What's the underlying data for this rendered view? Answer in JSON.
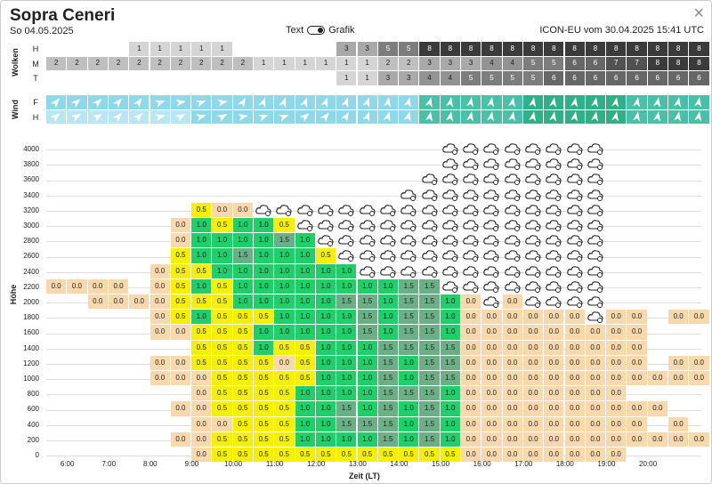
{
  "header": {
    "title": "Sopra Ceneri",
    "date": "So 04.05.2025",
    "toggle_left": "Text",
    "toggle_right": "Grafik",
    "model": "ICON-EU vom 30.04.2025 15:41 UTC",
    "close": "×"
  },
  "clouds": {
    "label": "Wolken",
    "rows": [
      {
        "name": "H",
        "values": [
          "",
          "",
          "",
          "",
          "1",
          "1",
          "1",
          "1",
          "1",
          "",
          "",
          "",
          "",
          "",
          "3",
          "3",
          "5",
          "5",
          "8",
          "8",
          "8",
          "8",
          "8",
          "8",
          "8",
          "8",
          "8",
          "8",
          "8",
          "8",
          "8",
          "8"
        ]
      },
      {
        "name": "M",
        "values": [
          "2",
          "2",
          "2",
          "2",
          "2",
          "2",
          "2",
          "2",
          "2",
          "2",
          "1",
          "1",
          "1",
          "1",
          "1",
          "1",
          "2",
          "2",
          "3",
          "3",
          "3",
          "4",
          "4",
          "5",
          "5",
          "6",
          "6",
          "7",
          "7",
          "8",
          "8",
          "8"
        ]
      },
      {
        "name": "T",
        "values": [
          "",
          "",
          "",
          "",
          "",
          "",
          "",
          "",
          "",
          "",
          "",
          "",
          "",
          "",
          "1",
          "1",
          "3",
          "3",
          "4",
          "4",
          "5",
          "5",
          "5",
          "5",
          "6",
          "6",
          "6",
          "6",
          "6",
          "6",
          "6",
          "6"
        ]
      }
    ]
  },
  "wind": {
    "label": "Wind",
    "rows": [
      {
        "name": "F",
        "dirs": [
          40,
          50,
          45,
          40,
          35,
          70,
          80,
          70,
          80,
          30,
          20,
          20,
          20,
          20,
          20,
          20,
          10,
          15,
          15,
          10,
          10,
          10,
          10,
          10,
          10,
          10,
          10,
          10,
          10,
          10,
          10,
          10
        ]
      },
      {
        "name": "H",
        "dirs": [
          50,
          60,
          60,
          40,
          45,
          75,
          60,
          75,
          60,
          80,
          70,
          70,
          50,
          40,
          30,
          20,
          15,
          15,
          10,
          10,
          10,
          10,
          10,
          10,
          10,
          10,
          10,
          10,
          10,
          10,
          10,
          10
        ]
      }
    ]
  },
  "chart": {
    "y_title": "Höhe",
    "x_title": "Zeit (LT)",
    "y_labels": [
      "0",
      "200",
      "400",
      "600",
      "800",
      "1000",
      "1200",
      "1400",
      "1600",
      "1800",
      "2000",
      "2200",
      "2400",
      "2600",
      "2800",
      "3000",
      "3200",
      "3400",
      "3600",
      "3800",
      "4000"
    ],
    "x_labels": [
      "6:00",
      "7:00",
      "8:00",
      "9:00",
      "10:00",
      "11:00",
      "12:00",
      "13:00",
      "14:00",
      "15:00",
      "16:00",
      "17:00",
      "18:00",
      "19:00",
      "20:00"
    ],
    "rows": [
      {
        "h": "4000",
        "c": [
          "",
          "",
          "",
          "",
          "",
          "",
          "",
          "",
          "",
          "",
          "",
          "",
          "",
          "",
          "",
          "",
          "",
          "",
          "",
          "C",
          "C",
          "C",
          "C",
          "C",
          "C",
          "C",
          "C",
          "",
          "",
          "",
          "",
          ""
        ]
      },
      {
        "h": "3800",
        "c": [
          "",
          "",
          "",
          "",
          "",
          "",
          "",
          "",
          "",
          "",
          "",
          "",
          "",
          "",
          "",
          "",
          "",
          "",
          "",
          "C",
          "C",
          "C",
          "C",
          "C",
          "C",
          "C",
          "C",
          "",
          "",
          "",
          "",
          ""
        ]
      },
      {
        "h": "3600",
        "c": [
          "",
          "",
          "",
          "",
          "",
          "",
          "",
          "",
          "",
          "",
          "",
          "",
          "",
          "",
          "",
          "",
          "",
          "",
          "C",
          "C",
          "C",
          "C",
          "C",
          "C",
          "C",
          "C",
          "C",
          "",
          "",
          "",
          "",
          ""
        ]
      },
      {
        "h": "3400",
        "c": [
          "",
          "",
          "",
          "",
          "",
          "",
          "",
          "",
          "",
          "",
          "",
          "",
          "",
          "",
          "",
          "",
          "",
          "C",
          "C",
          "C",
          "C",
          "C",
          "C",
          "C",
          "C",
          "C",
          "C",
          "",
          "",
          "",
          "",
          ""
        ]
      },
      {
        "h": "3200",
        "c": [
          "",
          "",
          "",
          "",
          "",
          "",
          "",
          "0.5",
          "0.0",
          "0.0",
          "C",
          "C",
          "C",
          "C",
          "C",
          "C",
          "C",
          "C",
          "C",
          "C",
          "C",
          "C",
          "C",
          "C",
          "C",
          "C",
          "C",
          "",
          "",
          "",
          "",
          ""
        ]
      },
      {
        "h": "3000",
        "c": [
          "",
          "",
          "",
          "",
          "",
          "",
          "0.0",
          "1.0",
          "0.5",
          "1.0",
          "1.0",
          "0.5",
          "C",
          "C",
          "C",
          "C",
          "C",
          "C",
          "C",
          "C",
          "C",
          "C",
          "C",
          "C",
          "C",
          "C",
          "C",
          "",
          "",
          "",
          "",
          ""
        ]
      },
      {
        "h": "2800",
        "c": [
          "",
          "",
          "",
          "",
          "",
          "",
          "0.0",
          "1.0",
          "1.0",
          "1.0",
          "1.0",
          "1.5",
          "1.0",
          "C",
          "C",
          "C",
          "C",
          "C",
          "C",
          "C",
          "C",
          "C",
          "C",
          "C",
          "C",
          "C",
          "C",
          "",
          "",
          "",
          "",
          ""
        ]
      },
      {
        "h": "2600",
        "c": [
          "",
          "",
          "",
          "",
          "",
          "",
          "0.5",
          "1.0",
          "1.0",
          "1.5",
          "1.0",
          "1.0",
          "1.0",
          "0.5",
          "C",
          "C",
          "C",
          "C",
          "C",
          "C",
          "C",
          "C",
          "C",
          "C",
          "C",
          "C",
          "C",
          "",
          "",
          "",
          "",
          ""
        ]
      },
      {
        "h": "2400",
        "c": [
          "",
          "",
          "",
          "",
          "",
          "0.0",
          "0.5",
          "0.5",
          "1.0",
          "1.0",
          "1.0",
          "1.0",
          "1.0",
          "1.0",
          "1.0",
          "C",
          "C",
          "C",
          "C",
          "C",
          "C",
          "C",
          "C",
          "C",
          "C",
          "C",
          "C",
          "",
          "",
          "",
          "",
          ""
        ]
      },
      {
        "h": "2200",
        "c": [
          "0.0",
          "0.0",
          "0.0",
          "0.0",
          "",
          "0.0",
          "0.5",
          "1.0",
          "0.5",
          "1.0",
          "1.0",
          "1.0",
          "1.0",
          "1.0",
          "1.0",
          "1.0",
          "1.0",
          "1.5",
          "1.5",
          "C",
          "C",
          "C",
          "C",
          "C",
          "C",
          "C",
          "C",
          "",
          "",
          "",
          "",
          ""
        ]
      },
      {
        "h": "2000",
        "c": [
          "",
          "",
          "0.0",
          "0.0",
          "0.0",
          "0.0",
          "0.5",
          "0.5",
          "0.5",
          "1.0",
          "1.0",
          "1.0",
          "1.0",
          "1.0",
          "1.5",
          "1.5",
          "1.0",
          "1.5",
          "1.5",
          "1.0",
          "0.0",
          "C",
          "0.0",
          "C",
          "C",
          "C",
          "C",
          "",
          "",
          "",
          "",
          ""
        ]
      },
      {
        "h": "1800",
        "c": [
          "",
          "",
          "",
          "",
          "",
          "0.0",
          "0.5",
          "1.0",
          "0.5",
          "0.5",
          "0.5",
          "1.0",
          "1.0",
          "1.0",
          "1.0",
          "1.5",
          "1.0",
          "1.5",
          "1.5",
          "1.0",
          "0.0",
          "0.0",
          "0.0",
          "0.0",
          "0.0",
          "0.0",
          "C",
          "0.0",
          "0.0",
          "",
          "0.0",
          "0.0"
        ]
      },
      {
        "h": "1600",
        "c": [
          "",
          "",
          "",
          "",
          "",
          "0.0",
          "0.0",
          "0.5",
          "0.5",
          "0.5",
          "1.0",
          "1.0",
          "1.0",
          "1.0",
          "1.0",
          "1.5",
          "1.0",
          "1.5",
          "1.5",
          "1.0",
          "0.0",
          "0.0",
          "0.0",
          "0.0",
          "0.0",
          "0.0",
          "0.0",
          "0.0",
          "0.0",
          "",
          "",
          ""
        ]
      },
      {
        "h": "1400",
        "c": [
          "",
          "",
          "",
          "",
          "",
          "",
          "",
          "0.5",
          "0.5",
          "0.5",
          "1.0",
          "0.5",
          "0.5",
          "1.0",
          "1.0",
          "1.0",
          "1.5",
          "1.5",
          "1.5",
          "1.5",
          "0.0",
          "0.0",
          "0.0",
          "0.0",
          "0.0",
          "0.0",
          "0.0",
          "0.0",
          "0.0",
          "",
          "",
          ""
        ]
      },
      {
        "h": "1200",
        "c": [
          "",
          "",
          "",
          "",
          "",
          "0.0",
          "0.0",
          "0.5",
          "0.5",
          "0.5",
          "0.5",
          "0.0",
          "0.5",
          "1.0",
          "1.0",
          "1.0",
          "1.5",
          "1.0",
          "1.5",
          "1.5",
          "0.0",
          "0.0",
          "0.0",
          "0.0",
          "0.0",
          "0.0",
          "0.0",
          "0.0",
          "0.0",
          "",
          "0.0",
          "0.0"
        ]
      },
      {
        "h": "1000",
        "c": [
          "",
          "",
          "",
          "",
          "",
          "0.0",
          "0.0",
          "0.0",
          "0.5",
          "0.5",
          "0.5",
          "0.5",
          "0.5",
          "1.0",
          "1.0",
          "1.0",
          "1.5",
          "1.0",
          "1.5",
          "1.5",
          "0.0",
          "0.0",
          "0.0",
          "0.0",
          "0.0",
          "0.0",
          "0.0",
          "0.0",
          "0.0",
          "0.0",
          "0.0",
          "0.0"
        ]
      },
      {
        "h": "800",
        "c": [
          "",
          "",
          "",
          "",
          "",
          "",
          "",
          "0.0",
          "0.5",
          "0.5",
          "0.5",
          "0.5",
          "1.0",
          "1.0",
          "1.0",
          "1.0",
          "1.5",
          "1.5",
          "1.5",
          "1.0",
          "0.0",
          "0.0",
          "0.0",
          "0.0",
          "0.0",
          "0.0",
          "0.0",
          "0.0",
          "",
          "",
          "",
          ""
        ]
      },
      {
        "h": "600",
        "c": [
          "",
          "",
          "",
          "",
          "",
          "",
          "0.0",
          "0.0",
          "0.5",
          "0.5",
          "0.5",
          "0.5",
          "1.0",
          "1.0",
          "1.5",
          "1.0",
          "1.5",
          "1.0",
          "1.5",
          "1.0",
          "0.0",
          "0.0",
          "0.0",
          "0.0",
          "0.0",
          "0.0",
          "0.0",
          "0.0",
          "0.0",
          "0.0",
          "",
          ""
        ]
      },
      {
        "h": "400",
        "c": [
          "",
          "",
          "",
          "",
          "",
          "",
          "",
          "0.0",
          "0.0",
          "0.5",
          "0.5",
          "0.5",
          "1.0",
          "1.0",
          "1.5",
          "1.5",
          "1.5",
          "1.0",
          "1.5",
          "1.0",
          "0.0",
          "0.0",
          "0.0",
          "0.0",
          "0.0",
          "0.0",
          "0.0",
          "0.0",
          "0.0",
          "",
          "0.0",
          ""
        ]
      },
      {
        "h": "200",
        "c": [
          "",
          "",
          "",
          "",
          "",
          "",
          "0.0",
          "0.0",
          "0.5",
          "0.5",
          "0.5",
          "0.5",
          "1.0",
          "1.0",
          "1.0",
          "1.0",
          "1.5",
          "1.0",
          "1.5",
          "1.0",
          "0.0",
          "0.0",
          "0.0",
          "0.0",
          "0.0",
          "0.0",
          "0.0",
          "0.0",
          "0.0",
          "0.0",
          "0.0",
          "0.0"
        ]
      },
      {
        "h": "0",
        "c": [
          "",
          "",
          "",
          "",
          "",
          "",
          "",
          "0.0",
          "0.5",
          "0.5",
          "0.5",
          "0.5",
          "0.5",
          "0.5",
          "0.5",
          "0.5",
          "0.5",
          "0.5",
          "0.5",
          "0.5",
          "0.0",
          "0.0",
          "0.0",
          "0.0",
          "0.0",
          "0.0",
          "0.0",
          "0.0",
          "",
          "",
          "",
          ""
        ]
      }
    ]
  },
  "colors": {
    "v0": "#f8d9ad",
    "v05": "#f4f000",
    "v10": "#1fd06a",
    "v15": "#6aaf86",
    "windlight": "#8fd8ea",
    "windmid": "#4ac0a8",
    "windteal": "#2fb087"
  }
}
